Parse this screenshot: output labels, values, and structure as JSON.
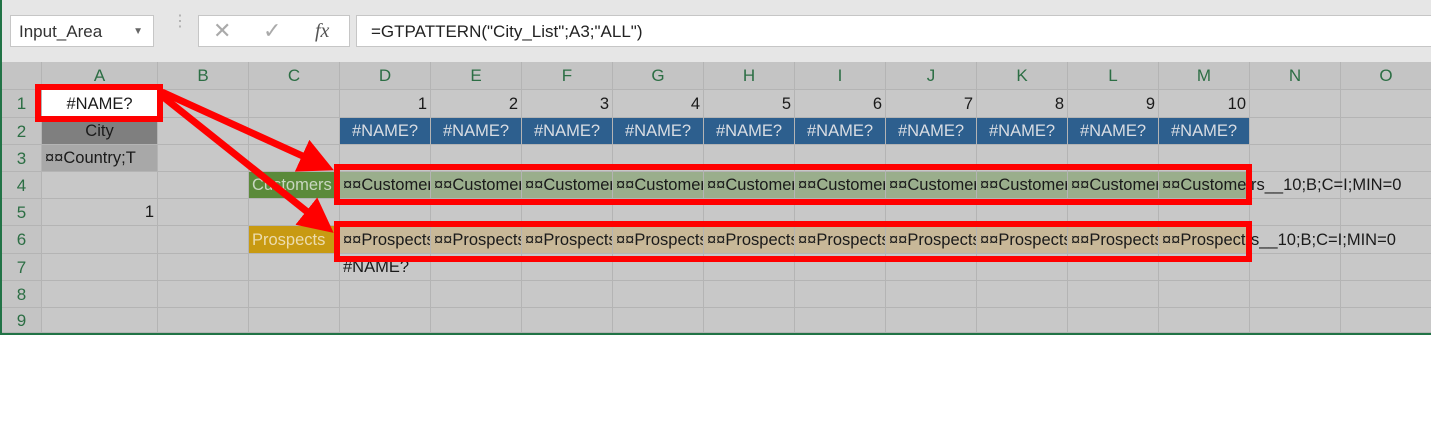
{
  "formula_bar": {
    "name_box": "Input_Area",
    "cancel_icon": "x-icon",
    "enter_icon": "check-icon",
    "function_icon": "fx-icon",
    "fx_label": "fx",
    "formula": "=GTPATTERN(\"City_List\";A3;\"ALL\")"
  },
  "sheet": {
    "columns": [
      "A",
      "B",
      "C",
      "D",
      "E",
      "F",
      "G",
      "H",
      "I",
      "J",
      "K",
      "L",
      "M",
      "N",
      "O"
    ],
    "rows": [
      "1",
      "2",
      "3",
      "4",
      "5",
      "6",
      "7",
      "8",
      "9"
    ],
    "cells": [
      {
        "ref": "A1",
        "text": "#NAME?",
        "align": "center",
        "bg": "#ffffff"
      },
      {
        "ref": "D1",
        "text": "1",
        "align": "right"
      },
      {
        "ref": "E1",
        "text": "2",
        "align": "right"
      },
      {
        "ref": "F1",
        "text": "3",
        "align": "right"
      },
      {
        "ref": "G1",
        "text": "4",
        "align": "right"
      },
      {
        "ref": "H1",
        "text": "5",
        "align": "right"
      },
      {
        "ref": "I1",
        "text": "6",
        "align": "right"
      },
      {
        "ref": "J1",
        "text": "7",
        "align": "right"
      },
      {
        "ref": "K1",
        "text": "8",
        "align": "right"
      },
      {
        "ref": "L1",
        "text": "9",
        "align": "right"
      },
      {
        "ref": "M1",
        "text": "10",
        "align": "right"
      },
      {
        "ref": "A2",
        "text": "City",
        "align": "center",
        "bg": "#7f7f7f"
      },
      {
        "ref": "D2",
        "text": "#NAME?",
        "align": "center",
        "bg": "#2d5f8e",
        "color": "#d9dde3"
      },
      {
        "ref": "E2",
        "text": "#NAME?",
        "align": "center",
        "bg": "#2d5f8e",
        "color": "#d9dde3"
      },
      {
        "ref": "F2",
        "text": "#NAME?",
        "align": "center",
        "bg": "#2d5f8e",
        "color": "#d9dde3"
      },
      {
        "ref": "G2",
        "text": "#NAME?",
        "align": "center",
        "bg": "#2d5f8e",
        "color": "#d9dde3"
      },
      {
        "ref": "H2",
        "text": "#NAME?",
        "align": "center",
        "bg": "#2d5f8e",
        "color": "#d9dde3"
      },
      {
        "ref": "I2",
        "text": "#NAME?",
        "align": "center",
        "bg": "#2d5f8e",
        "color": "#d9dde3"
      },
      {
        "ref": "J2",
        "text": "#NAME?",
        "align": "center",
        "bg": "#2d5f8e",
        "color": "#d9dde3"
      },
      {
        "ref": "K2",
        "text": "#NAME?",
        "align": "center",
        "bg": "#2d5f8e",
        "color": "#d9dde3"
      },
      {
        "ref": "L2",
        "text": "#NAME?",
        "align": "center",
        "bg": "#2d5f8e",
        "color": "#d9dde3"
      },
      {
        "ref": "M2",
        "text": "#NAME?",
        "align": "center",
        "bg": "#2d5f8e",
        "color": "#d9dde3"
      },
      {
        "ref": "A3",
        "text": "¤¤Country;T",
        "align": "left",
        "bg": "#a8a8a8"
      },
      {
        "ref": "C4",
        "text": "Customers",
        "align": "left",
        "bg": "#5b8a3a",
        "color": "#c9d6c0"
      },
      {
        "ref": "D4",
        "text": "¤¤Customers",
        "align": "left",
        "bg": "#9aae8c"
      },
      {
        "ref": "E4",
        "text": "¤¤Customers",
        "align": "left",
        "bg": "#9aae8c"
      },
      {
        "ref": "F4",
        "text": "¤¤Customers",
        "align": "left",
        "bg": "#9aae8c"
      },
      {
        "ref": "G4",
        "text": "¤¤Customers",
        "align": "left",
        "bg": "#9aae8c"
      },
      {
        "ref": "H4",
        "text": "¤¤Customers",
        "align": "left",
        "bg": "#9aae8c"
      },
      {
        "ref": "I4",
        "text": "¤¤Customers",
        "align": "left",
        "bg": "#9aae8c"
      },
      {
        "ref": "J4",
        "text": "¤¤Customers",
        "align": "left",
        "bg": "#9aae8c"
      },
      {
        "ref": "K4",
        "text": "¤¤Customers",
        "align": "left",
        "bg": "#9aae8c"
      },
      {
        "ref": "L4",
        "text": "¤¤Customers",
        "align": "left",
        "bg": "#9aae8c"
      },
      {
        "ref": "M4",
        "text": "¤¤Customers",
        "align": "left",
        "bg": "#9aae8c"
      },
      {
        "ref": "N4",
        "text": "rs__10;B;C=I;MIN=0",
        "align": "left",
        "overflow": true
      },
      {
        "ref": "A5",
        "text": "1",
        "align": "right"
      },
      {
        "ref": "C6",
        "text": "Prospects",
        "align": "left",
        "bg": "#c89a12",
        "color": "#ecdcae"
      },
      {
        "ref": "D6",
        "text": "¤¤Prospects",
        "align": "left",
        "bg": "#c8b898"
      },
      {
        "ref": "E6",
        "text": "¤¤Prospects",
        "align": "left",
        "bg": "#c8b898"
      },
      {
        "ref": "F6",
        "text": "¤¤Prospects",
        "align": "left",
        "bg": "#c8b898"
      },
      {
        "ref": "G6",
        "text": "¤¤Prospects",
        "align": "left",
        "bg": "#c8b898"
      },
      {
        "ref": "H6",
        "text": "¤¤Prospects",
        "align": "left",
        "bg": "#c8b898"
      },
      {
        "ref": "I6",
        "text": "¤¤Prospects",
        "align": "left",
        "bg": "#c8b898"
      },
      {
        "ref": "J6",
        "text": "¤¤Prospects",
        "align": "left",
        "bg": "#c8b898"
      },
      {
        "ref": "K6",
        "text": "¤¤Prospects",
        "align": "left",
        "bg": "#c8b898"
      },
      {
        "ref": "L6",
        "text": "¤¤Prospects",
        "align": "left",
        "bg": "#c8b898"
      },
      {
        "ref": "M6",
        "text": "¤¤Prospects",
        "align": "left",
        "bg": "#c8b898"
      },
      {
        "ref": "N6",
        "text": "s__10;B;C=I;MIN=0",
        "align": "left",
        "overflow": true
      },
      {
        "ref": "D7",
        "text": "#NAME?",
        "align": "left"
      }
    ]
  },
  "annotations": {
    "color": "#ff0000"
  }
}
